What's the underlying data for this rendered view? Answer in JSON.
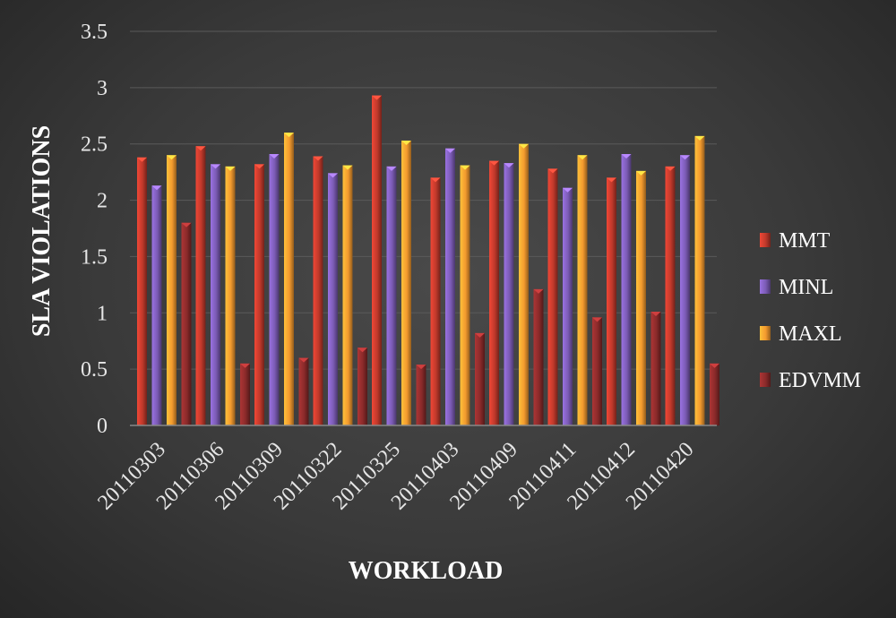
{
  "chart_data": {
    "type": "bar",
    "title": "",
    "xlabel": "WORKLOAD",
    "ylabel": "SLA VIOLATIONS",
    "ylim": [
      0,
      3.5
    ],
    "yticks": [
      "0",
      "0.5",
      "1",
      "1.5",
      "2",
      "2.5",
      "3",
      "3.5"
    ],
    "grid": true,
    "legend_position": "right",
    "categories": [
      "20110303",
      "20110306",
      "20110309",
      "20110322",
      "20110325",
      "20110403",
      "20110409",
      "20110411",
      "20110412",
      "20110420"
    ],
    "series": [
      {
        "name": "MMT",
        "color": "#c0392b",
        "values": [
          2.38,
          2.48,
          2.32,
          2.39,
          2.93,
          2.2,
          2.35,
          2.28,
          2.2,
          2.3
        ]
      },
      {
        "name": "MINL",
        "color": "#7b5bb5",
        "values": [
          2.13,
          2.32,
          2.41,
          2.24,
          2.3,
          2.46,
          2.33,
          2.11,
          2.41,
          2.4
        ]
      },
      {
        "name": "MAXL",
        "color": "#f39a2e",
        "values": [
          2.4,
          2.3,
          2.6,
          2.31,
          2.53,
          2.31,
          2.5,
          2.4,
          2.26,
          2.57
        ]
      },
      {
        "name": "EDVMM",
        "color": "#8a2a2a",
        "values": [
          1.8,
          0.55,
          0.6,
          0.69,
          0.54,
          0.82,
          1.21,
          0.96,
          1.01,
          0.55
        ]
      }
    ]
  }
}
